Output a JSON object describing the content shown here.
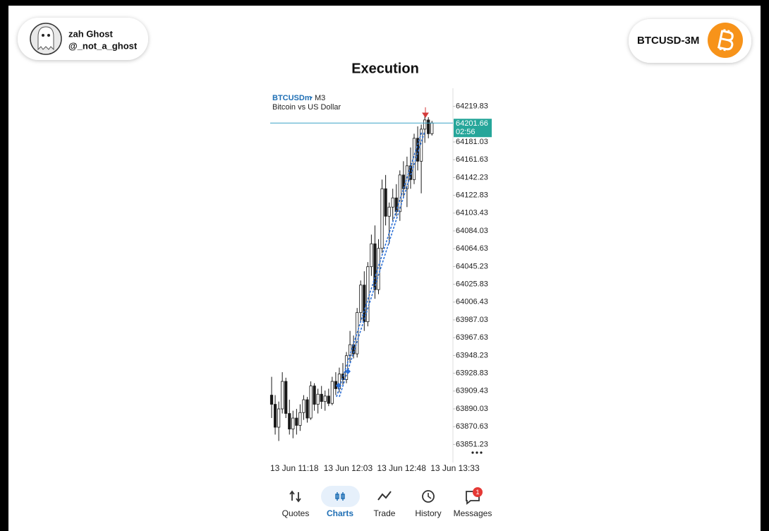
{
  "header": {
    "name": "zah Ghost",
    "handle": "@_not_a_ghost",
    "badge": "BTCUSD-3M",
    "title": "Execution"
  },
  "chart_data": {
    "type": "candlestick",
    "symbol": "BTCUSDm",
    "timeframe": "M3",
    "subtitle": "Bitcoin vs US Dollar",
    "categories": [
      "13 Jun 11:18",
      null,
      null,
      null,
      null,
      null,
      null,
      null,
      null,
      null,
      null,
      null,
      null,
      null,
      null,
      "13 Jun 12:03",
      null,
      null,
      null,
      null,
      null,
      null,
      null,
      null,
      null,
      null,
      null,
      null,
      null,
      null,
      "13 Jun 12:48",
      null,
      null,
      null,
      null,
      null,
      null,
      null,
      null,
      null,
      null,
      null,
      null,
      null,
      null,
      "13 Jun 13:33"
    ],
    "open": [
      63905,
      63895,
      63870,
      63890,
      63920,
      63885,
      63868,
      63880,
      63872,
      63886,
      63900,
      63880,
      63915,
      63895,
      63906,
      63898,
      63904,
      63896,
      63920,
      63912,
      63928,
      63922,
      63948,
      63960,
      63950,
      63995,
      64025,
      63985,
      64045,
      64070,
      64020,
      64065,
      64130,
      64100,
      64110,
      64120,
      64105,
      64145,
      64130,
      64155,
      64140,
      64185,
      64160,
      64195,
      64205,
      64190
    ],
    "high": [
      63925,
      63905,
      63898,
      63930,
      63924,
      63900,
      63888,
      63890,
      63895,
      63905,
      63903,
      63920,
      63918,
      63912,
      63915,
      63910,
      63912,
      63925,
      63930,
      63935,
      63940,
      63952,
      63975,
      63970,
      64000,
      64030,
      64040,
      64050,
      64080,
      64090,
      64075,
      64140,
      64145,
      64115,
      64130,
      64135,
      64150,
      64160,
      64165,
      64175,
      64190,
      64198,
      64200,
      64210,
      64208,
      64204
    ],
    "low": [
      63880,
      63862,
      63855,
      63885,
      63880,
      63862,
      63858,
      63862,
      63866,
      63878,
      63875,
      63878,
      63888,
      63885,
      63890,
      63888,
      63893,
      63894,
      63905,
      63908,
      63915,
      63918,
      63940,
      63945,
      63946,
      63985,
      63975,
      63980,
      64035,
      64010,
      64015,
      64060,
      64090,
      64070,
      64095,
      64100,
      64095,
      64120,
      64110,
      64130,
      64135,
      64150,
      64125,
      64180,
      64185,
      64188
    ],
    "close": [
      63895,
      63870,
      63890,
      63920,
      63885,
      63868,
      63880,
      63872,
      63886,
      63900,
      63880,
      63915,
      63895,
      63906,
      63898,
      63904,
      63896,
      63920,
      63912,
      63928,
      63922,
      63948,
      63960,
      63950,
      63995,
      64025,
      63985,
      64045,
      64070,
      64020,
      64065,
      64130,
      64100,
      64110,
      64120,
      64105,
      64145,
      64130,
      64155,
      64140,
      64185,
      64160,
      64195,
      64205,
      64190,
      64201.66
    ],
    "last_price": 64201.66,
    "countdown": "02:56",
    "ylim": [
      63830,
      64238
    ],
    "yticks": [
      64219.83,
      64181.03,
      64161.63,
      64142.23,
      64122.83,
      64103.43,
      64084.03,
      64064.63,
      64045.23,
      64025.83,
      64006.43,
      63987.03,
      63967.63,
      63948.23,
      63928.83,
      63909.43,
      63890.03,
      63870.63,
      63851.23
    ],
    "up_color": "#ffffff",
    "down_color": "#1a1a1a",
    "line_color": "#3ba3c7"
  },
  "nav": {
    "items": [
      "Quotes",
      "Charts",
      "Trade",
      "History",
      "Messages"
    ],
    "badge": 1
  }
}
